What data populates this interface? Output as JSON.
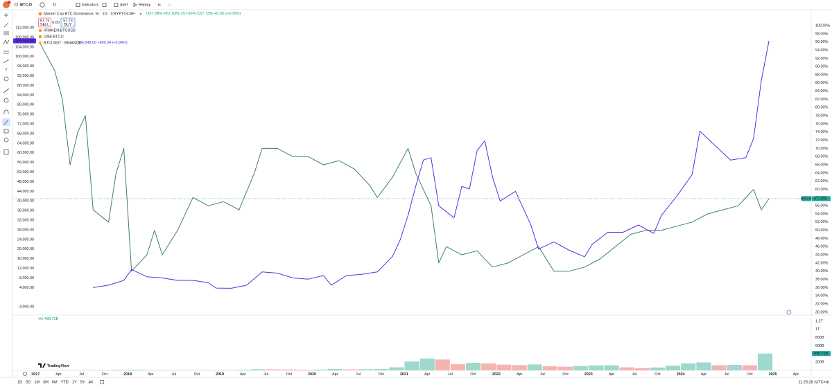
{
  "toolbar": {
    "symbol": "BTC.D",
    "interval": "D",
    "indicators": "Indicators",
    "alert": "Alert",
    "replay": "Replay"
  },
  "legend": {
    "ohlc": [
      "O57.68%",
      "H57.93%",
      "L57.66%",
      "C57.73%",
      "+0.03 (+0.05%)"
    ],
    "sell_price": "57.73",
    "sell": "SELL",
    "spread": "0.00",
    "buy_price": "57.73",
    "buy": "BUY",
    "overlays": [
      "KRAKEN:BTCUSD",
      "CME:BTC1!"
    ],
    "btc_last": "106,548.00",
    "btc_change": "+889.34 (+0.84%)",
    "btcd_tag": "BTC.D",
    "btcd_last": "57.73%"
  },
  "chart_data": {
    "type": "line",
    "xlim": [
      "2016-10",
      "2025-06"
    ],
    "xticks": [
      {
        "value": "2017-01",
        "label": "2017"
      },
      {
        "value": "2017-04",
        "label": "Apr"
      },
      {
        "value": "2017-07",
        "label": "Jul"
      },
      {
        "value": "2017-10",
        "label": "Oct"
      },
      {
        "value": "2018-01",
        "label": "2018"
      },
      {
        "value": "2018-04",
        "label": "Apr"
      },
      {
        "value": "2018-07",
        "label": "Jul"
      },
      {
        "value": "2018-10",
        "label": "Oct"
      },
      {
        "value": "2019-01",
        "label": "2019"
      },
      {
        "value": "2019-04",
        "label": "Apr"
      },
      {
        "value": "2019-07",
        "label": "Jul"
      },
      {
        "value": "2019-10",
        "label": "Oct"
      },
      {
        "value": "2020-01",
        "label": "2020"
      },
      {
        "value": "2020-04",
        "label": "Apr"
      },
      {
        "value": "2020-07",
        "label": "Jul"
      },
      {
        "value": "2020-10",
        "label": "Oct"
      },
      {
        "value": "2021-01",
        "label": "2021"
      },
      {
        "value": "2021-04",
        "label": "Apr"
      },
      {
        "value": "2021-07",
        "label": "Jul"
      },
      {
        "value": "2021-10",
        "label": "Oct"
      },
      {
        "value": "2022-01",
        "label": "2022"
      },
      {
        "value": "2022-04",
        "label": "Apr"
      },
      {
        "value": "2022-07",
        "label": "Jul"
      },
      {
        "value": "2022-10",
        "label": "Oct"
      },
      {
        "value": "2023-01",
        "label": "2023"
      },
      {
        "value": "2023-04",
        "label": "Apr"
      },
      {
        "value": "2023-07",
        "label": "Jul"
      },
      {
        "value": "2023-10",
        "label": "Oct"
      },
      {
        "value": "2024-01",
        "label": "2024"
      },
      {
        "value": "2024-04",
        "label": "Apr"
      },
      {
        "value": "2024-07",
        "label": "Jul"
      },
      {
        "value": "2024-10",
        "label": "Oct"
      },
      {
        "value": "2025-01",
        "label": "2025"
      },
      {
        "value": "2025-04",
        "label": "Apr"
      }
    ],
    "ylim": [
      -7400,
      119500
    ],
    "yticks": [
      {
        "value": 112000,
        "label": "112,000.00"
      },
      {
        "value": 108000,
        "label": "108,000.00"
      },
      {
        "value": 104000,
        "label": "104,000.00"
      },
      {
        "value": 100000,
        "label": "100,000.00"
      },
      {
        "value": 96000,
        "label": "96,000.00"
      },
      {
        "value": 92000,
        "label": "92,000.00"
      },
      {
        "value": 88000,
        "label": "88,000.00"
      },
      {
        "value": 84000,
        "label": "84,000.00"
      },
      {
        "value": 80000,
        "label": "80,000.00"
      },
      {
        "value": 76000,
        "label": "76,000.00"
      },
      {
        "value": 72000,
        "label": "72,000.00"
      },
      {
        "value": 68000,
        "label": "68,000.00"
      },
      {
        "value": 64000,
        "label": "64,000.00"
      },
      {
        "value": 60000,
        "label": "60,000.00"
      },
      {
        "value": 56000,
        "label": "56,000.00"
      },
      {
        "value": 52000,
        "label": "52,000.00"
      },
      {
        "value": 48000,
        "label": "48,000.00"
      },
      {
        "value": 44000,
        "label": "44,000.00"
      },
      {
        "value": 40000,
        "label": "40,000.00"
      },
      {
        "value": 36000,
        "label": "36,000.00"
      },
      {
        "value": 32000,
        "label": "32,000.00"
      },
      {
        "value": 28000,
        "label": "28,000.00"
      },
      {
        "value": 24000,
        "label": "24,000.00"
      },
      {
        "value": 20000,
        "label": "20,000.00"
      },
      {
        "value": 16000,
        "label": "16,000.00"
      },
      {
        "value": 12000,
        "label": "12,000.00"
      },
      {
        "value": 8000,
        "label": "8,000.00"
      },
      {
        "value": 4000,
        "label": "4,000.00"
      },
      {
        "value": -4000,
        "label": "-4,000.00"
      }
    ],
    "y2lim": [
      29.3,
      103.9
    ],
    "y2ticks": [
      {
        "value": 100,
        "label": "100.00%"
      },
      {
        "value": 98,
        "label": "98.00%"
      },
      {
        "value": 96,
        "label": "96.00%"
      },
      {
        "value": 94,
        "label": "94.00%"
      },
      {
        "value": 92,
        "label": "92.00%"
      },
      {
        "value": 90,
        "label": "90.00%"
      },
      {
        "value": 88,
        "label": "88.00%"
      },
      {
        "value": 86,
        "label": "86.00%"
      },
      {
        "value": 84,
        "label": "84.00%"
      },
      {
        "value": 82,
        "label": "82.00%"
      },
      {
        "value": 80,
        "label": "80.00%"
      },
      {
        "value": 78,
        "label": "78.00%"
      },
      {
        "value": 76,
        "label": "76.00%"
      },
      {
        "value": 74,
        "label": "74.00%"
      },
      {
        "value": 72,
        "label": "72.00%"
      },
      {
        "value": 70,
        "label": "70.00%"
      },
      {
        "value": 68,
        "label": "68.00%"
      },
      {
        "value": 66,
        "label": "66.00%"
      },
      {
        "value": 64,
        "label": "64.00%"
      },
      {
        "value": 62,
        "label": "62.00%"
      },
      {
        "value": 60,
        "label": "60.00%"
      },
      {
        "value": 58,
        "label": "58.00%"
      },
      {
        "value": 56,
        "label": "56.00%"
      },
      {
        "value": 54,
        "label": "54.00%"
      },
      {
        "value": 52,
        "label": "52.00%"
      },
      {
        "value": 50,
        "label": "50.00%"
      },
      {
        "value": 48,
        "label": "48.00%"
      },
      {
        "value": 46,
        "label": "46.00%"
      },
      {
        "value": 44,
        "label": "44.00%"
      },
      {
        "value": 42,
        "label": "42.00%"
      },
      {
        "value": 40,
        "label": "40.00%"
      },
      {
        "value": 38,
        "label": "38.00%"
      },
      {
        "value": 36,
        "label": "36.00%"
      },
      {
        "value": 34,
        "label": "34.00%"
      },
      {
        "value": 32,
        "label": "32.00%"
      },
      {
        "value": 30,
        "label": "30.00%"
      }
    ],
    "series": [
      {
        "name": "Market Cap BTC Dominance, % · 1D · CRYPTOCAP",
        "color": "#3d7f6f",
        "axis": "y2",
        "x": [
          "2017-01",
          "2017-03",
          "2017-04",
          "2017-05",
          "2017-06",
          "2017-07",
          "2017-08",
          "2017-10",
          "2017-11",
          "2017-12",
          "2018-01",
          "2018-03",
          "2018-04",
          "2018-05",
          "2018-07",
          "2018-09",
          "2018-11",
          "2019-01",
          "2019-03",
          "2019-05",
          "2019-06",
          "2019-08",
          "2019-10",
          "2019-12",
          "2020-02",
          "2020-04",
          "2020-06",
          "2020-08",
          "2020-09",
          "2020-11",
          "2021-01",
          "2021-02",
          "2021-04",
          "2021-05",
          "2021-06",
          "2021-08",
          "2021-10",
          "2021-12",
          "2022-02",
          "2022-04",
          "2022-06",
          "2022-08",
          "2022-10",
          "2022-12",
          "2023-02",
          "2023-04",
          "2023-06",
          "2023-08",
          "2023-10",
          "2023-12",
          "2024-02",
          "2024-04",
          "2024-06",
          "2024-08",
          "2024-10",
          "2024-11",
          "2024-12"
        ],
        "values": [
          96,
          89,
          82,
          66,
          74,
          78,
          55,
          52,
          64,
          70,
          40,
          44,
          50,
          44,
          50,
          58,
          56,
          57,
          55,
          64,
          70,
          70,
          68,
          68,
          66,
          67,
          65,
          61,
          58,
          63,
          70,
          64,
          56,
          42,
          46,
          44,
          45,
          41,
          42,
          44,
          46,
          40,
          40,
          41,
          43,
          46,
          49,
          50,
          50,
          51,
          52,
          54,
          55,
          56,
          60,
          55,
          57.73
        ]
      },
      {
        "name": "BTCUSDT · BINANCE",
        "color": "#5b2be6",
        "axis": "y",
        "x": [
          "2017-08",
          "2017-10",
          "2017-12",
          "2018-01",
          "2018-03",
          "2018-05",
          "2018-07",
          "2018-09",
          "2018-11",
          "2018-12",
          "2019-02",
          "2019-04",
          "2019-06",
          "2019-08",
          "2019-10",
          "2019-12",
          "2020-02",
          "2020-03",
          "2020-05",
          "2020-07",
          "2020-09",
          "2020-11",
          "2020-12",
          "2021-01",
          "2021-02",
          "2021-03",
          "2021-04",
          "2021-05",
          "2021-07",
          "2021-08",
          "2021-09",
          "2021-10",
          "2021-11",
          "2021-12",
          "2022-01",
          "2022-03",
          "2022-05",
          "2022-06",
          "2022-08",
          "2022-10",
          "2022-12",
          "2023-01",
          "2023-03",
          "2023-05",
          "2023-07",
          "2023-09",
          "2023-10",
          "2023-12",
          "2024-02",
          "2024-03",
          "2024-05",
          "2024-07",
          "2024-09",
          "2024-10",
          "2024-11",
          "2024-12"
        ],
        "values": [
          4000,
          5000,
          7000,
          11500,
          8500,
          8000,
          7000,
          7000,
          6000,
          3800,
          3700,
          5000,
          10500,
          10000,
          8000,
          7500,
          9000,
          5000,
          9000,
          9500,
          10500,
          17000,
          24000,
          34000,
          46000,
          57000,
          58000,
          38000,
          33000,
          46000,
          45000,
          61000,
          65000,
          50000,
          40000,
          44000,
          30000,
          20000,
          23000,
          19500,
          16800,
          22000,
          27000,
          27000,
          30000,
          26500,
          34000,
          42000,
          51000,
          69000,
          63000,
          57000,
          58000,
          66000,
          90000,
          106548
        ]
      }
    ],
    "last_line_color": "#26a69a",
    "volume": {
      "label": "Vol",
      "last": "496.72B",
      "up_color": "#9fd8cd",
      "down_color": "#f4b4b0",
      "x": [
        "2017-01",
        "2017-03",
        "2017-05",
        "2017-07",
        "2017-09",
        "2017-11",
        "2018-01",
        "2018-03",
        "2018-05",
        "2018-07",
        "2018-09",
        "2018-11",
        "2019-01",
        "2019-03",
        "2019-05",
        "2019-07",
        "2019-09",
        "2019-11",
        "2020-01",
        "2020-03",
        "2020-05",
        "2020-07",
        "2020-09",
        "2020-11",
        "2021-01",
        "2021-03",
        "2021-05",
        "2021-07",
        "2021-09",
        "2021-11",
        "2022-01",
        "2022-03",
        "2022-05",
        "2022-07",
        "2022-09",
        "2022-11",
        "2023-01",
        "2023-03",
        "2023-05",
        "2023-07",
        "2023-09",
        "2023-11",
        "2024-01",
        "2024-03",
        "2024-05",
        "2024-07",
        "2024-09",
        "2024-11"
      ],
      "values": [
        3000000000.0,
        4000000000.0,
        6000000000.0,
        7000000000.0,
        10000000000.0,
        15000000000.0,
        18000000000.0,
        11000000000.0,
        8000000000.0,
        7000000000.0,
        7000000000.0,
        7000000000.0,
        8000000000.0,
        15000000000.0,
        28000000000.0,
        25000000000.0,
        22000000000.0,
        16000000000.0,
        21000000000.0,
        35000000000.0,
        25000000000.0,
        28000000000.0,
        32000000000.0,
        75000000000.0,
        215000000000.0,
        290000000000.0,
        265000000000.0,
        150000000000.0,
        185000000000.0,
        170000000000.0,
        140000000000.0,
        130000000000.0,
        145000000000.0,
        100000000000.0,
        90000000000.0,
        105000000000.0,
        120000000000.0,
        125000000000.0,
        75000000000.0,
        55000000000.0,
        70000000000.0,
        115000000000.0,
        170000000000.0,
        195000000000.0,
        125000000000.0,
        135000000000.0,
        125000000000.0,
        410000000000.0
      ],
      "ylim": [
        0,
        1350000000000.0
      ],
      "yticks": [
        {
          "value": 1200000000000.0,
          "label": "1.2T"
        },
        {
          "value": 1000000000000.0,
          "label": "1T"
        },
        {
          "value": 800000000000.0,
          "label": "800B"
        },
        {
          "value": 600000000000.0,
          "label": "600B"
        },
        {
          "value": 400000000000.0,
          "label": "400B"
        },
        {
          "value": 200000000000.0,
          "label": "200B"
        }
      ]
    }
  },
  "watermark": "TradingView",
  "bottom_bar": {
    "ranges": [
      "1D",
      "5D",
      "1M",
      "3M",
      "6M",
      "YTD",
      "1Y",
      "5Y",
      "All"
    ],
    "clock": "11:25:28 (UTC+4)"
  }
}
